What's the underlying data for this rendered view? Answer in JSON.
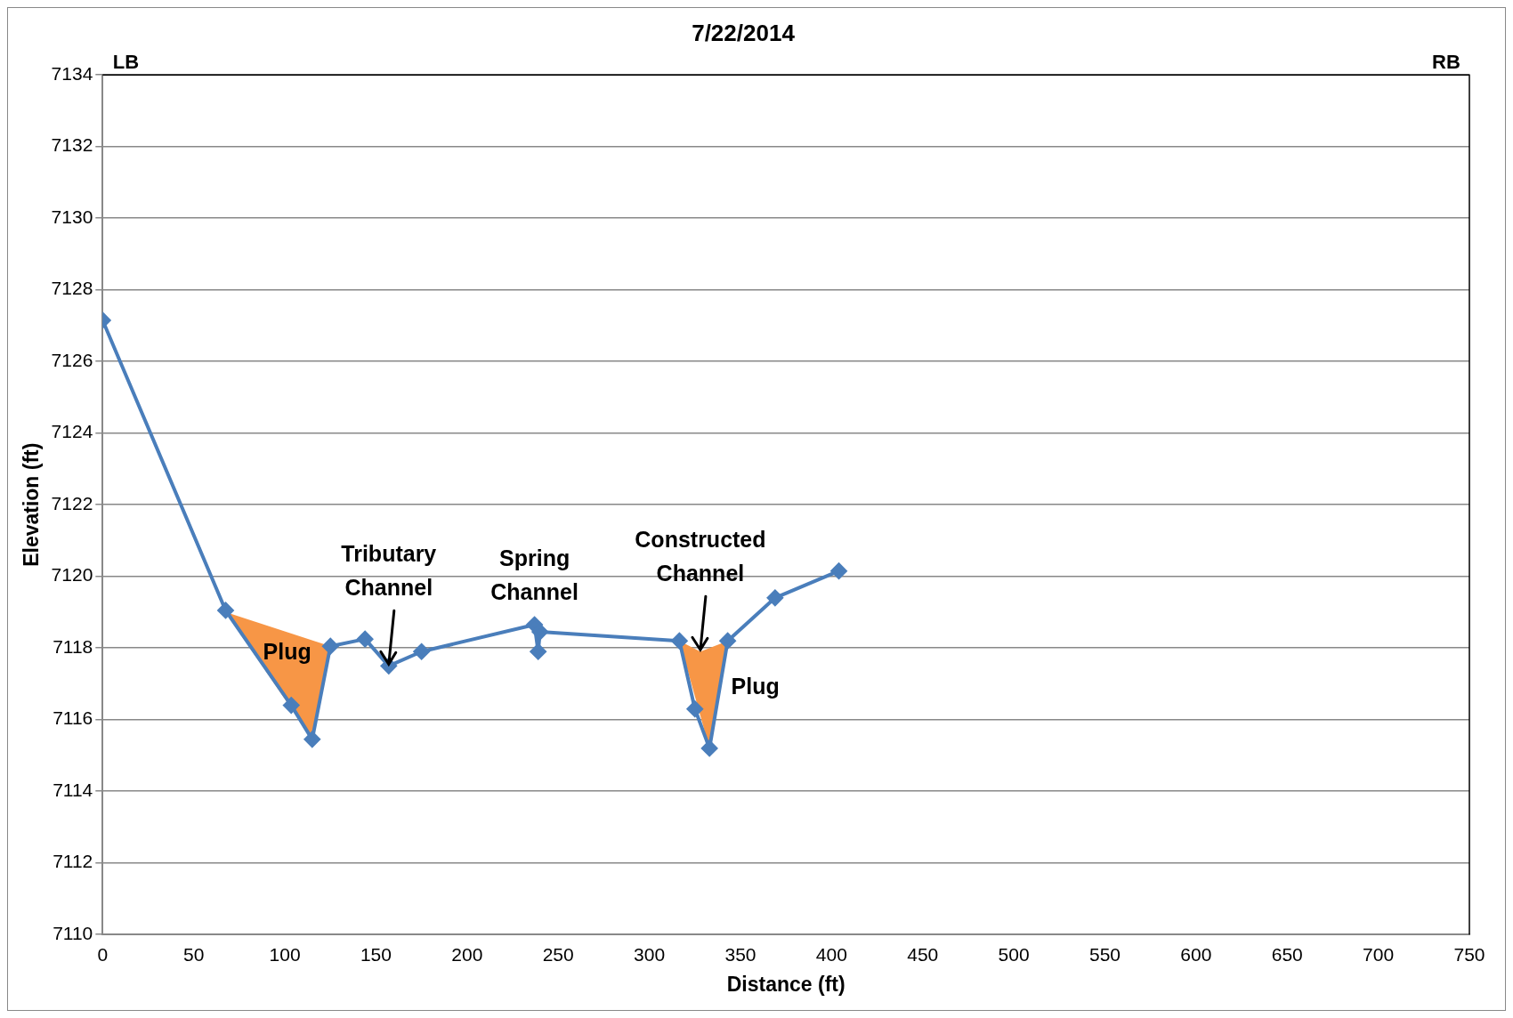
{
  "chart_data": {
    "type": "line",
    "title": "7/22/2014",
    "xlabel": "Distance (ft)",
    "ylabel": "Elevation (ft)",
    "series": [
      {
        "type": "area",
        "color": "#f79646",
        "marker": "none",
        "x": [
          67.5,
          125,
          115
        ],
        "values": [
          7119.0,
          7118.05,
          7115.45
        ]
      },
      {
        "type": "area",
        "color": "#f79646",
        "marker": "none",
        "x": [
          316.5,
          328,
          343,
          333
        ],
        "values": [
          7118.2,
          7117.9,
          7118.2,
          7115.2
        ]
      },
      {
        "color": "#4a7ebb",
        "marker": "diamond",
        "x": [
          0,
          67.5,
          103.5,
          115,
          125,
          144,
          157,
          175,
          237,
          239,
          240,
          316.5,
          325,
          333,
          343,
          369,
          404
        ],
        "values": [
          7127.15,
          7119.05,
          7116.4,
          7115.45,
          7118.05,
          7118.25,
          7117.5,
          7117.9,
          7118.65,
          7117.9,
          7118.45,
          7118.2,
          7116.3,
          7115.2,
          7118.2,
          7119.4,
          7120.15
        ]
      }
    ],
    "xlim": [
      0,
      750
    ],
    "xticks": [
      0,
      50,
      100,
      150,
      200,
      250,
      300,
      350,
      400,
      450,
      500,
      550,
      600,
      650,
      700,
      750
    ],
    "ylim": [
      7110,
      7134
    ],
    "yticks": [
      7110,
      7112,
      7114,
      7116,
      7118,
      7120,
      7122,
      7124,
      7126,
      7128,
      7130,
      7132,
      7134
    ],
    "grid": "y",
    "legend": false,
    "annotations": [
      "LB",
      "RB",
      "Plug",
      "Spring\nChannel",
      "Plug",
      {
        "text": "Tributary\nChannel",
        "x": 157,
        "y": 7117.5
      },
      {
        "text": "Constructed\nChannel",
        "x": 328,
        "y": 7117.9
      }
    ]
  }
}
